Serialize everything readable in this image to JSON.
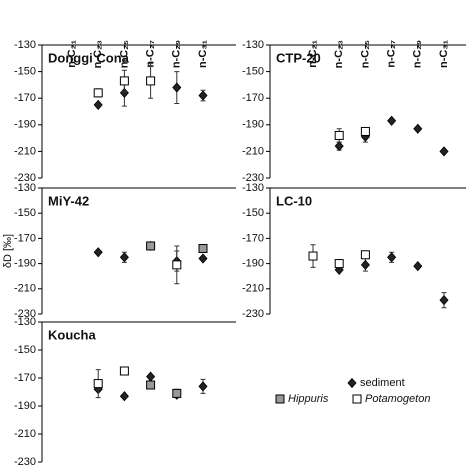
{
  "chart_data": [
    {
      "type": "scatter",
      "title": "Donggi Cona",
      "categories": [
        "n-C₂₁",
        "n-C₂₃",
        "n-C₂₅",
        "n-C₂₇",
        "n-C₂₉",
        "n-C₃₁"
      ],
      "ylim": [
        -130,
        -230
      ],
      "yticks": [
        -130,
        -150,
        -170,
        -190,
        -210,
        -230
      ],
      "series": [
        {
          "name": "sediment",
          "marker": "diamond",
          "color": "#222222",
          "values": [
            null,
            -175,
            -166,
            null,
            -162,
            -168
          ],
          "errors": [
            null,
            null,
            10,
            null,
            12,
            4
          ]
        },
        {
          "name": "Potamogeton",
          "marker": "square",
          "color": "#ffffff",
          "values": [
            null,
            -166,
            -157,
            -157,
            null,
            null
          ],
          "errors": [
            null,
            3,
            8,
            13,
            null,
            null
          ]
        }
      ]
    },
    {
      "type": "scatter",
      "title": "CTP-20",
      "categories": [
        "n-C₂₁",
        "n-C₂₃",
        "n-C₂₅",
        "n-C₂₇",
        "n-C₂₉",
        "n-C₃₁"
      ],
      "ylim": [
        -130,
        -230
      ],
      "yticks": [
        -130,
        -150,
        -170,
        -190,
        -210,
        -230
      ],
      "series": [
        {
          "name": "sediment",
          "marker": "diamond",
          "color": "#222222",
          "values": [
            null,
            -206,
            -199,
            -187,
            -193,
            -210
          ],
          "errors": [
            null,
            3,
            4,
            null,
            null,
            null
          ]
        },
        {
          "name": "Potamogeton",
          "marker": "square",
          "color": "#ffffff",
          "values": [
            null,
            -198,
            -195,
            null,
            null,
            null
          ],
          "errors": [
            null,
            5,
            3,
            null,
            null,
            null
          ]
        }
      ]
    },
    {
      "type": "scatter",
      "title": "MiY-42",
      "ylabel": "δD [‰]",
      "ylim": [
        -130,
        -230
      ],
      "yticks": [
        -130,
        -150,
        -170,
        -190,
        -210,
        -230
      ],
      "series": [
        {
          "name": "sediment",
          "marker": "diamond",
          "color": "#222222",
          "values": [
            null,
            -181,
            -185,
            -176,
            -188,
            -186
          ],
          "errors": [
            null,
            null,
            4,
            null,
            8,
            null
          ]
        },
        {
          "name": "Hippuris",
          "marker": "square",
          "color": "#999999",
          "values": [
            null,
            null,
            null,
            -176,
            null,
            -178
          ],
          "errors": [
            null,
            null,
            null,
            2,
            null,
            3
          ]
        },
        {
          "name": "Potamogeton",
          "marker": "square",
          "color": "#ffffff",
          "values": [
            null,
            null,
            null,
            null,
            -191,
            null
          ],
          "errors": [
            null,
            null,
            null,
            null,
            15,
            null
          ]
        }
      ]
    },
    {
      "type": "scatter",
      "title": "LC-10",
      "ylim": [
        -130,
        -230
      ],
      "yticks": [
        -130,
        -150,
        -170,
        -190,
        -210,
        -230
      ],
      "series": [
        {
          "name": "sediment",
          "marker": "diamond",
          "color": "#222222",
          "values": [
            null,
            -195,
            -191,
            -185,
            -192,
            -219
          ],
          "errors": [
            null,
            null,
            5,
            4,
            null,
            6
          ]
        },
        {
          "name": "Potamogeton",
          "marker": "square",
          "color": "#ffffff",
          "values": [
            -184,
            -190,
            -183,
            null,
            null,
            null
          ],
          "errors": [
            9,
            3,
            null,
            null,
            null,
            null
          ]
        }
      ]
    },
    {
      "type": "scatter",
      "title": "Koucha",
      "ylim": [
        -130,
        -230
      ],
      "yticks": [
        -130,
        -150,
        -170,
        -190,
        -210,
        -230
      ],
      "series": [
        {
          "name": "sediment",
          "marker": "diamond",
          "color": "#222222",
          "values": [
            null,
            -178,
            -183,
            -169,
            -182,
            -176
          ],
          "errors": [
            null,
            null,
            null,
            null,
            null,
            5
          ]
        },
        {
          "name": "Hippuris",
          "marker": "square",
          "color": "#999999",
          "values": [
            null,
            null,
            null,
            -175,
            -181,
            null
          ],
          "errors": [
            null,
            null,
            null,
            null,
            3,
            null
          ]
        },
        {
          "name": "Potamogeton",
          "marker": "square",
          "color": "#ffffff",
          "values": [
            null,
            -174,
            -165,
            null,
            null,
            null
          ],
          "errors": [
            null,
            10,
            null,
            null,
            null,
            null
          ]
        }
      ]
    }
  ]
}
